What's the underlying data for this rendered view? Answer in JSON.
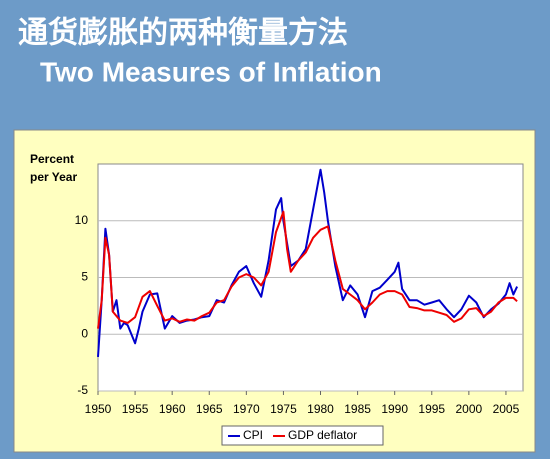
{
  "chart_data": {
    "type": "line",
    "title": "通货膨胀的两种衡量方法",
    "subtitle": "Two Measures of Inflation",
    "ylabel": [
      "Percent",
      "per Year"
    ],
    "xlim": [
      1950,
      2007.3
    ],
    "xticks": [
      1950,
      1955,
      1960,
      1965,
      1970,
      1975,
      1980,
      1985,
      1990,
      1995,
      2000,
      2005
    ],
    "ylim": [
      -5,
      15
    ],
    "yticks": [
      -5,
      0,
      5,
      10
    ],
    "grid": true,
    "legend": "bottom",
    "series": [
      {
        "name": "CPI",
        "color": "#0000cc",
        "x": [
          1950,
          1950.5,
          1951,
          1951.5,
          1952,
          1952.5,
          1953,
          1953.5,
          1954,
          1954.5,
          1955,
          1955.5,
          1956,
          1957,
          1958,
          1959,
          1960,
          1961,
          1962,
          1963,
          1964,
          1965,
          1966,
          1967,
          1968,
          1969,
          1970,
          1971,
          1972,
          1973,
          1974,
          1974.7,
          1975,
          1976,
          1977,
          1978,
          1979,
          1980,
          1980.5,
          1981,
          1982,
          1983,
          1984,
          1985,
          1986,
          1987,
          1988,
          1989,
          1990,
          1990.5,
          1991,
          1992,
          1993,
          1994,
          1995,
          1996,
          1997,
          1998,
          1999,
          2000,
          2001,
          2002,
          2003,
          2004,
          2005,
          2005.5,
          2006,
          2006.5
        ],
        "values": [
          -2,
          3,
          9.3,
          7,
          2,
          3,
          0.5,
          1,
          0.8,
          0,
          -0.8,
          0.5,
          2,
          3.5,
          3.6,
          0.5,
          1.6,
          1,
          1.2,
          1.3,
          1.5,
          1.6,
          3,
          2.8,
          4.3,
          5.5,
          6,
          4.5,
          3.3,
          6.5,
          11,
          12,
          10,
          6,
          6.5,
          7.5,
          11,
          14.5,
          12.5,
          10,
          6,
          3,
          4.3,
          3.5,
          1.5,
          3.8,
          4.1,
          4.8,
          5.5,
          6.3,
          4,
          3,
          3,
          2.6,
          2.8,
          3,
          2.2,
          1.5,
          2.2,
          3.4,
          2.8,
          1.5,
          2.2,
          2.7,
          3.5,
          4.5,
          3.5,
          4.2
        ]
      },
      {
        "name": "GDP deflator",
        "color": "#ee0000",
        "x": [
          1950,
          1950.5,
          1951,
          1951.5,
          1952,
          1953,
          1954,
          1955,
          1956,
          1957,
          1958,
          1959,
          1960,
          1961,
          1962,
          1963,
          1964,
          1965,
          1966,
          1967,
          1968,
          1969,
          1970,
          1971,
          1972,
          1973,
          1974,
          1975,
          1975.5,
          1976,
          1977,
          1978,
          1979,
          1980,
          1981,
          1981.5,
          1982,
          1983,
          1984,
          1985,
          1986,
          1987,
          1988,
          1989,
          1990,
          1991,
          1992,
          1993,
          1994,
          1995,
          1996,
          1997,
          1998,
          1999,
          2000,
          2001,
          2002,
          2003,
          2004,
          2005,
          2006,
          2006.5
        ],
        "values": [
          0.5,
          3,
          8.5,
          7,
          2,
          1.2,
          1,
          1.5,
          3.3,
          3.8,
          2.5,
          1.2,
          1.4,
          1.1,
          1.3,
          1.2,
          1.6,
          1.9,
          2.8,
          3,
          4.2,
          5,
          5.3,
          5,
          4.3,
          5.5,
          9,
          10.8,
          7.5,
          5.5,
          6.5,
          7.2,
          8.5,
          9.2,
          9.5,
          8,
          6.5,
          4,
          3.5,
          3,
          2.2,
          2.8,
          3.5,
          3.8,
          3.8,
          3.5,
          2.4,
          2.3,
          2.1,
          2.1,
          1.9,
          1.7,
          1.1,
          1.4,
          2.2,
          2.3,
          1.6,
          2,
          2.8,
          3.2,
          3.2,
          2.9
        ]
      }
    ]
  }
}
